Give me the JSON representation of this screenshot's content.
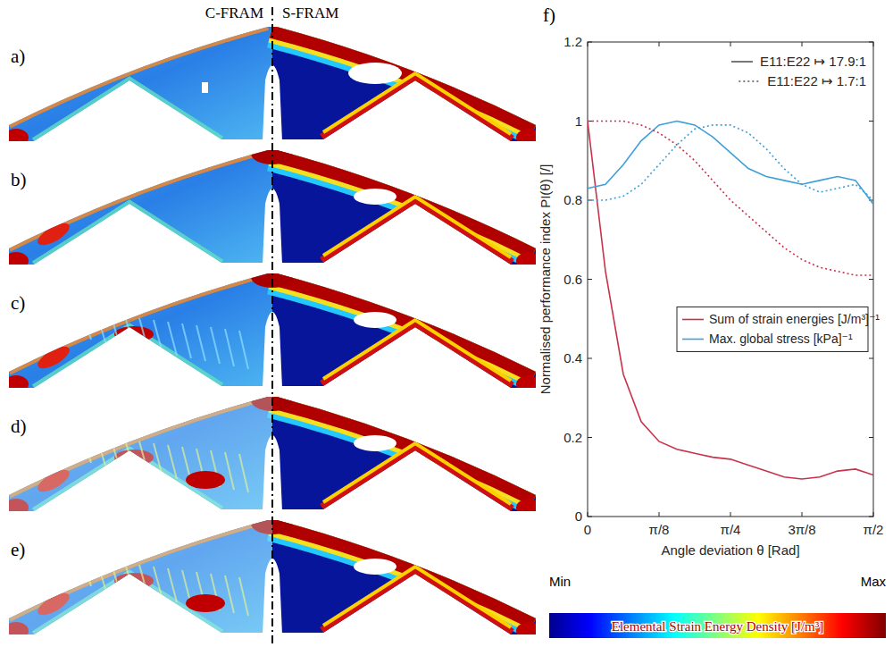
{
  "panels": {
    "headers": [
      "C-FRAM",
      "S-FRAM"
    ],
    "labels": [
      "a)",
      "b)",
      "c)",
      "d)",
      "e)"
    ]
  },
  "chart_data": {
    "type": "line",
    "panel_label": "f)",
    "xlabel": "Angle deviation θ [Rad]",
    "ylabel": "Normalised performance index PI(θ) [/]",
    "x": [
      0,
      0.0982,
      0.1963,
      0.2945,
      0.3927,
      0.4909,
      0.589,
      0.6872,
      0.7854,
      0.8836,
      0.9817,
      1.0799,
      1.1781,
      1.2763,
      1.3744,
      1.4726,
      1.5708
    ],
    "xlim": [
      0,
      1.5708
    ],
    "xticks": [
      0,
      {
        "value": 0.3927,
        "label": "π/8"
      },
      {
        "value": 0.7854,
        "label": "π/4"
      },
      {
        "value": 1.1781,
        "label": "3π/8"
      },
      {
        "value": 1.5708,
        "label": "π/2"
      }
    ],
    "ylim": [
      0,
      1.2
    ],
    "yticks": [
      0,
      0.2,
      0.4,
      0.6,
      0.8,
      1,
      1.2
    ],
    "grid": false,
    "legend": "right",
    "style_legend": [
      {
        "label": "E11:E22 ↦ 17.9:1",
        "line_style": "solid"
      },
      {
        "label": "E11:E22 ↦ 1.7:1",
        "line_style": "dotted"
      }
    ],
    "series": [
      {
        "name": "Sum of strain energies [J/m³]⁻¹",
        "color": "#c8324b",
        "line_style": "solid",
        "values": [
          1.0,
          0.62,
          0.36,
          0.24,
          0.19,
          0.17,
          0.16,
          0.15,
          0.145,
          0.13,
          0.115,
          0.1,
          0.095,
          0.1,
          0.115,
          0.12,
          0.105
        ]
      },
      {
        "name": "Max. global stress [kPa]⁻¹",
        "color": "#3f9fd8",
        "line_style": "solid",
        "values": [
          0.83,
          0.84,
          0.89,
          0.95,
          0.99,
          1.0,
          0.99,
          0.96,
          0.92,
          0.88,
          0.86,
          0.85,
          0.84,
          0.85,
          0.86,
          0.85,
          0.79
        ]
      },
      {
        "name": "Sum of strain energies [J/m³]⁻¹",
        "color": "#c8324b",
        "line_style": "dotted",
        "values": [
          1.0,
          1.0,
          1.0,
          0.99,
          0.97,
          0.94,
          0.9,
          0.85,
          0.8,
          0.76,
          0.72,
          0.68,
          0.65,
          0.63,
          0.62,
          0.61,
          0.61
        ]
      },
      {
        "name": "Max. global stress [kPa]⁻¹",
        "color": "#3f9fd8",
        "line_style": "dotted",
        "values": [
          0.8,
          0.8,
          0.81,
          0.84,
          0.89,
          0.94,
          0.98,
          0.99,
          0.99,
          0.97,
          0.93,
          0.88,
          0.84,
          0.82,
          0.83,
          0.84,
          0.8
        ]
      }
    ]
  },
  "colorbar": {
    "min_label": "Min",
    "max_label": "Max",
    "label": "Elemental Strain Energy Density [J/m³]"
  }
}
